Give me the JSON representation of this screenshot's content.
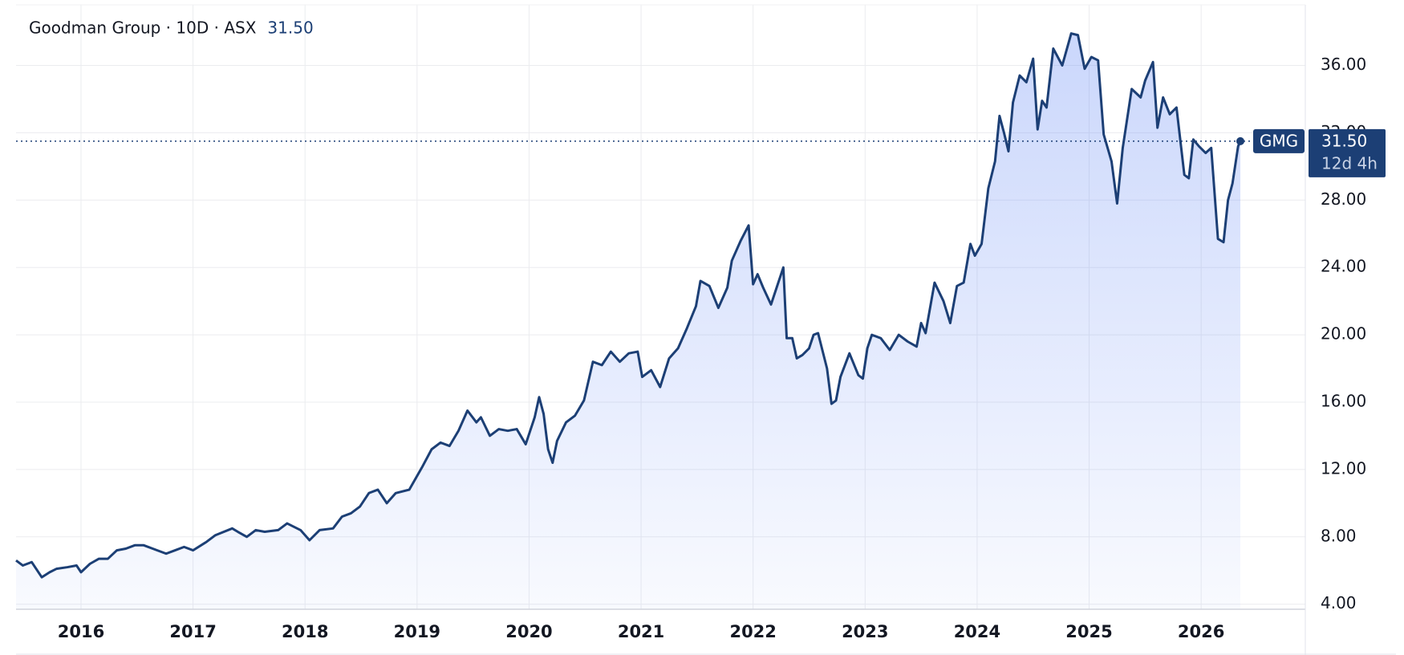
{
  "chart_data": {
    "type": "line",
    "title": "Goodman Group · 10D · ASX",
    "current": {
      "value": 31.5,
      "label": "31.50"
    },
    "countdown": "12d 4h",
    "grid": true,
    "xlim": [
      2015.42,
      2026.93
    ],
    "xticks": [
      2016,
      2017,
      2018,
      2019,
      2020,
      2021,
      2022,
      2023,
      2024,
      2025,
      2026
    ],
    "ylim": [
      3.7,
      39.6
    ],
    "yticks": [
      {
        "value": 4,
        "label": "4.00"
      },
      {
        "value": 8,
        "label": "8.00"
      },
      {
        "value": 12,
        "label": "12.00"
      },
      {
        "value": 16,
        "label": "16.00"
      },
      {
        "value": 20,
        "label": "20.00"
      },
      {
        "value": 24,
        "label": "24.00"
      },
      {
        "value": 28,
        "label": "28.00"
      },
      {
        "value": 32,
        "label": "32.00"
      },
      {
        "value": 36,
        "label": "36.00"
      }
    ],
    "x": [
      2015.42,
      2015.48,
      2015.56,
      2015.65,
      2015.72,
      2015.78,
      2015.88,
      2015.96,
      2016.0,
      2016.08,
      2016.16,
      2016.24,
      2016.32,
      2016.4,
      2016.48,
      2016.56,
      2016.64,
      2016.76,
      2016.84,
      2016.92,
      2017.0,
      2017.12,
      2017.2,
      2017.35,
      2017.4,
      2017.48,
      2017.56,
      2017.64,
      2017.76,
      2017.84,
      2017.96,
      2018.04,
      2018.13,
      2018.25,
      2018.33,
      2018.41,
      2018.49,
      2018.57,
      2018.65,
      2018.73,
      2018.81,
      2018.93,
      2019.05,
      2019.13,
      2019.21,
      2019.29,
      2019.37,
      2019.45,
      2019.53,
      2019.57,
      2019.65,
      2019.73,
      2019.81,
      2019.89,
      2019.97,
      2020.05,
      2020.09,
      2020.13,
      2020.17,
      2020.21,
      2020.25,
      2020.33,
      2020.41,
      2020.49,
      2020.57,
      2020.65,
      2020.73,
      2020.81,
      2020.89,
      2020.97,
      2021.01,
      2021.09,
      2021.17,
      2021.25,
      2021.33,
      2021.41,
      2021.49,
      2021.53,
      2021.61,
      2021.69,
      2021.77,
      2021.81,
      2021.89,
      2021.96,
      2022.0,
      2022.04,
      2022.09,
      2022.16,
      2022.21,
      2022.27,
      2022.3,
      2022.35,
      2022.39,
      2022.44,
      2022.5,
      2022.54,
      2022.58,
      2022.66,
      2022.7,
      2022.74,
      2022.78,
      2022.86,
      2022.94,
      2022.98,
      2023.02,
      2023.06,
      2023.14,
      2023.22,
      2023.3,
      2023.38,
      2023.46,
      2023.5,
      2023.54,
      2023.62,
      2023.7,
      2023.76,
      2023.82,
      2023.88,
      2023.94,
      2023.98,
      2024.04,
      2024.1,
      2024.16,
      2024.2,
      2024.24,
      2024.28,
      2024.32,
      2024.38,
      2024.44,
      2024.5,
      2024.54,
      2024.58,
      2024.62,
      2024.68,
      2024.76,
      2024.84,
      2024.9,
      2024.96,
      2025.02,
      2025.08,
      2025.13,
      2025.2,
      2025.25,
      2025.3,
      2025.38,
      2025.46,
      2025.5,
      2025.57,
      2025.61,
      2025.66,
      2025.72,
      2025.78,
      2025.85,
      2025.89,
      2025.93,
      2025.98,
      2026.04,
      2026.09,
      2026.15,
      2026.2,
      2026.24,
      2026.28,
      2026.33,
      2026.35
    ],
    "series": [
      {
        "name": "GMG",
        "color": "#1c3f75",
        "values": [
          6.6,
          6.3,
          6.5,
          5.6,
          5.9,
          6.1,
          6.2,
          6.3,
          5.9,
          6.4,
          6.7,
          6.7,
          7.2,
          7.3,
          7.5,
          7.5,
          7.3,
          7.0,
          7.2,
          7.4,
          7.2,
          7.7,
          8.1,
          8.5,
          8.3,
          8.0,
          8.4,
          8.3,
          8.4,
          8.8,
          8.4,
          7.8,
          8.4,
          8.5,
          9.2,
          9.4,
          9.8,
          10.6,
          10.8,
          10.0,
          10.6,
          10.8,
          12.2,
          13.2,
          13.6,
          13.4,
          14.3,
          15.5,
          14.8,
          15.1,
          14.0,
          14.4,
          14.3,
          14.4,
          13.5,
          15.1,
          16.3,
          15.3,
          13.2,
          12.4,
          13.7,
          14.8,
          15.2,
          16.1,
          18.4,
          18.2,
          19.0,
          18.4,
          18.9,
          19.0,
          17.5,
          17.9,
          16.9,
          18.6,
          19.2,
          20.4,
          21.7,
          23.2,
          22.9,
          21.6,
          22.8,
          24.4,
          25.6,
          26.5,
          23.0,
          23.6,
          22.8,
          21.8,
          22.8,
          24.0,
          19.8,
          19.8,
          18.6,
          18.8,
          19.2,
          20.0,
          20.1,
          18.0,
          15.9,
          16.1,
          17.5,
          18.9,
          17.6,
          17.4,
          19.2,
          20.0,
          19.8,
          19.1,
          20.0,
          19.6,
          19.3,
          20.7,
          20.1,
          23.1,
          22.0,
          20.7,
          22.9,
          23.1,
          25.4,
          24.7,
          25.4,
          28.7,
          30.3,
          33.0,
          32.0,
          30.9,
          33.8,
          35.4,
          35.0,
          36.4,
          32.2,
          33.9,
          33.5,
          37.0,
          36.0,
          37.9,
          37.8,
          35.8,
          36.5,
          36.3,
          31.9,
          30.3,
          27.8,
          31.1,
          34.6,
          34.1,
          35.1,
          36.2,
          32.3,
          34.1,
          33.1,
          33.5,
          29.5,
          29.3,
          31.6,
          31.2,
          30.8,
          31.1,
          25.7,
          25.5,
          28.0,
          29.0,
          31.2,
          31.5
        ]
      }
    ]
  }
}
